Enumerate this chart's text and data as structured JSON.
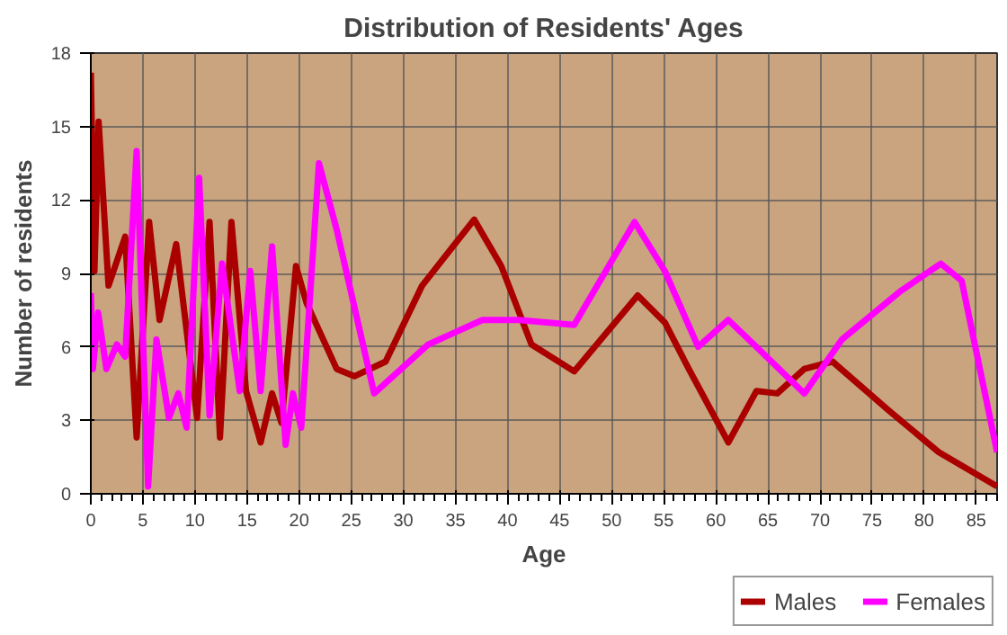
{
  "chart_data": {
    "type": "line",
    "title": "Distribution of Residents' Ages",
    "xlabel": "Age",
    "ylabel": "Number of residents",
    "xlim": [
      0,
      87
    ],
    "xticks": [
      0,
      5,
      10,
      15,
      20,
      25,
      30,
      35,
      40,
      45,
      50,
      55,
      60,
      65,
      70,
      75,
      80,
      85
    ],
    "ylim": [
      0,
      18
    ],
    "yticks": [
      0,
      3,
      6,
      9,
      12,
      15,
      18
    ],
    "grid": true,
    "legend": "bottom right",
    "marker": "none",
    "line_style": "solid",
    "series": [
      {
        "name": "Males",
        "color": "#aa0000",
        "x": [
          0,
          0.35,
          0.75,
          1.7,
          3.3,
          4.4,
          5.6,
          6.6,
          8.2,
          10.2,
          11.4,
          12.4,
          13.5,
          14.9,
          16.3,
          17.4,
          18.3,
          19.7,
          20.7,
          23.6,
          25.3,
          28.3,
          31.8,
          36.8,
          39.4,
          42.3,
          46.4,
          52.5,
          55.1,
          57.4,
          61.2,
          63.9,
          65.9,
          68.5,
          71.2,
          76.6,
          81.4,
          87
        ],
        "values": [
          17.2,
          9.1,
          15.2,
          8.5,
          10.5,
          2.3,
          11.1,
          7.1,
          10.2,
          3.1,
          11.1,
          2.3,
          11.1,
          4.2,
          2.1,
          4.1,
          2.9,
          9.3,
          7.8,
          5.1,
          4.8,
          5.4,
          8.5,
          11.2,
          9.3,
          6.1,
          5.0,
          8.1,
          7.0,
          5.1,
          2.1,
          4.2,
          4.1,
          5.1,
          5.4,
          3.4,
          1.7,
          0.3
        ]
      },
      {
        "name": "Females",
        "color": "#ff00ff",
        "x": [
          0,
          0.2,
          0.7,
          1.5,
          2.5,
          3.3,
          4.4,
          5.5,
          6.3,
          7.5,
          8.4,
          9.2,
          10.4,
          11.4,
          12.6,
          14.3,
          15.3,
          16.3,
          17.4,
          18.7,
          19.4,
          20.2,
          21.9,
          23.6,
          27.2,
          32.4,
          37.6,
          41.1,
          46.4,
          52.2,
          55.1,
          58.3,
          61.2,
          63.9,
          68.5,
          72.1,
          77.8,
          81.6,
          83.6,
          87
        ],
        "values": [
          8.2,
          5.1,
          7.4,
          5.1,
          6.1,
          5.6,
          14.0,
          0.3,
          6.3,
          3.1,
          4.1,
          2.7,
          12.9,
          3.2,
          9.4,
          4.2,
          9.1,
          4.2,
          10.1,
          2.0,
          4.1,
          2.7,
          13.5,
          10.8,
          4.1,
          6.1,
          7.1,
          7.1,
          6.9,
          11.1,
          9.1,
          6.0,
          7.1,
          6.0,
          4.1,
          6.3,
          8.3,
          9.4,
          8.7,
          1.7
        ]
      }
    ]
  }
}
